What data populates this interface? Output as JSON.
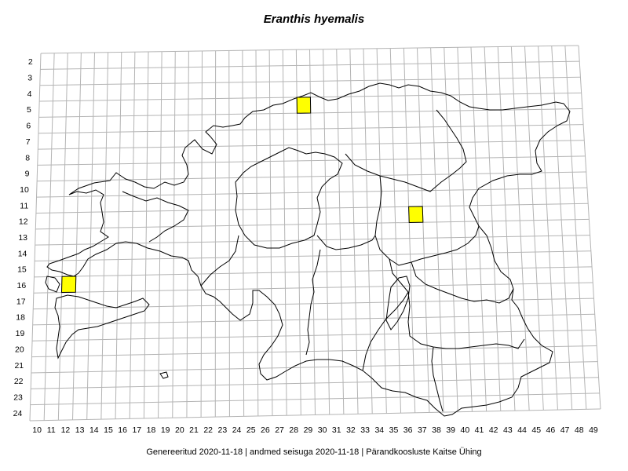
{
  "title": "Eranthis hyemalis",
  "footer": "Genereeritud 2020-11-18  |  andmed seisuga 2020-11-18  |  Pärandkoosluste Kaitse Ühing",
  "grid": {
    "col_labels": [
      "10",
      "11",
      "12",
      "13",
      "14",
      "15",
      "16",
      "17",
      "18",
      "19",
      "20",
      "21",
      "22",
      "23",
      "24",
      "25",
      "26",
      "27",
      "28",
      "29",
      "30",
      "31",
      "32",
      "33",
      "34",
      "35",
      "36",
      "37",
      "38",
      "39",
      "40",
      "41",
      "42",
      "43",
      "44",
      "45",
      "46",
      "47",
      "48",
      "49"
    ],
    "row_labels": [
      "2",
      "3",
      "4",
      "5",
      "6",
      "7",
      "8",
      "9",
      "10",
      "11",
      "12",
      "13",
      "14",
      "15",
      "16",
      "17",
      "18",
      "19",
      "20",
      "21",
      "22",
      "23",
      "24"
    ],
    "line_color": "#b4b4b4"
  },
  "occurrences": [
    {
      "col": 29,
      "row": 5
    },
    {
      "col": 37,
      "row": 12
    },
    {
      "col": 12,
      "row": 16
    }
  ],
  "colors": {
    "occurrence_fill": "#ffff00",
    "occurrence_stroke": "#000000",
    "border": "#000000"
  }
}
